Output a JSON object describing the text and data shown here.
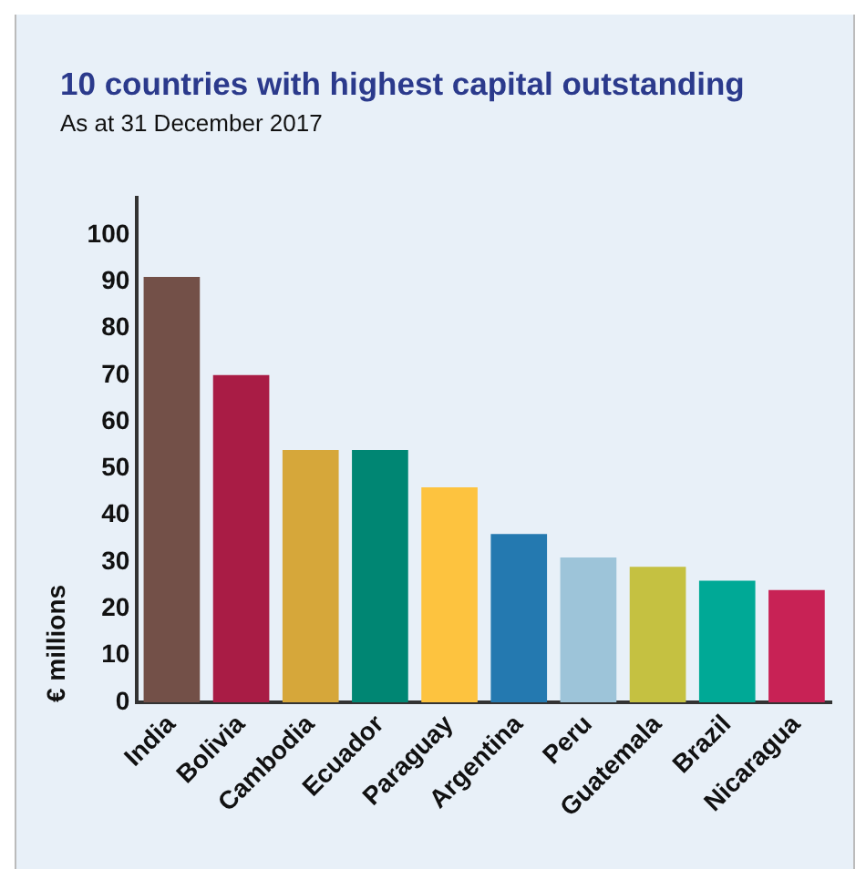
{
  "chart_data": {
    "type": "bar",
    "title": "10 countries with highest capital outstanding",
    "subtitle": "As at 31 December 2017",
    "ylabel": "€ millions",
    "categories": [
      "India",
      "Bolivia",
      "Cambodia",
      "Ecuador",
      "Paraguay",
      "Argentina",
      "Peru",
      "Guatemala",
      "Brazil",
      "Nicaragua"
    ],
    "values": [
      91,
      70,
      54,
      54,
      46,
      36,
      31,
      29,
      26,
      24
    ],
    "colors": [
      "#735048",
      "#a91c45",
      "#d6a73a",
      "#008673",
      "#fdc33f",
      "#2479b0",
      "#9dc4d9",
      "#c5c141",
      "#00a996",
      "#c82255"
    ],
    "ylim": [
      0,
      108
    ],
    "yticks": [
      0,
      10,
      20,
      30,
      40,
      50,
      60,
      70,
      80,
      90,
      100
    ],
    "grid": false,
    "legend": false
  }
}
